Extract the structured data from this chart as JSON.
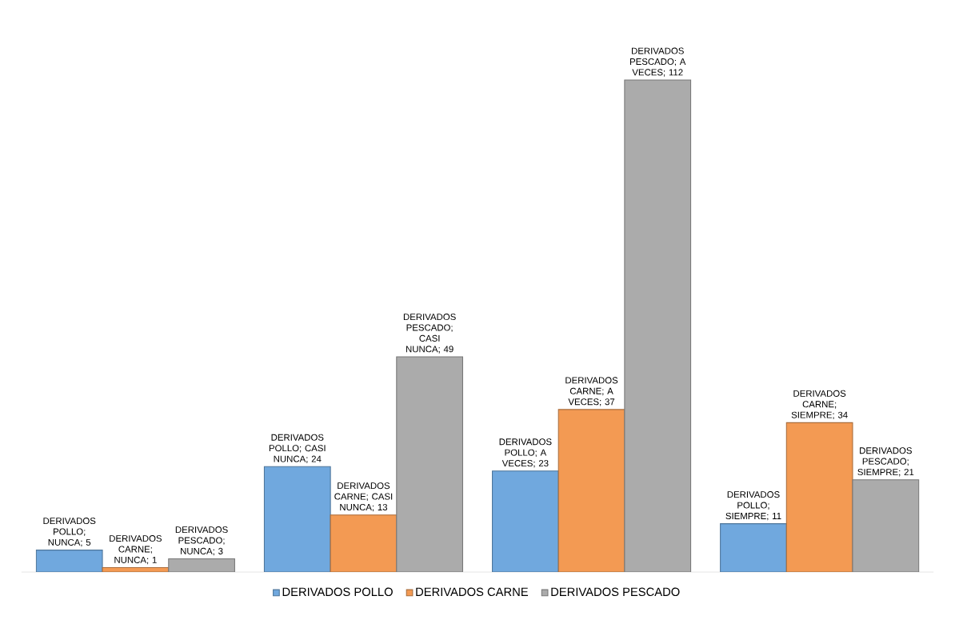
{
  "chart_data": {
    "type": "bar",
    "categories": [
      null,
      null,
      null,
      null
    ],
    "series": [
      {
        "name": "DERIVADOS POLLO",
        "color": "#70a8de",
        "values": [
          5,
          24,
          23,
          11
        ],
        "value_labels": [
          "DERIVADOS POLLO; NUNCA; 5",
          "DERIVADOS POLLO; CASI NUNCA; 24",
          "DERIVADOS POLLO; A VECES; 23",
          "DERIVADOS POLLO; SIEMPRE; 11"
        ]
      },
      {
        "name": "DERIVADOS CARNE",
        "color": "#f39a53",
        "values": [
          1,
          13,
          37,
          34
        ],
        "value_labels": [
          "DERIVADOS CARNE; NUNCA; 1",
          "DERIVADOS CARNE; CASI NUNCA; 13",
          "DERIVADOS CARNE; A VECES; 37",
          "DERIVADOS CARNE; SIEMPRE; 34"
        ]
      },
      {
        "name": "DERIVADOS PESCADO",
        "color": "#ababab",
        "values": [
          3,
          49,
          112,
          21
        ],
        "value_labels": [
          "DERIVADOS PESCADO; NUNCA; 3",
          "DERIVADOS PESCADO; CASI NUNCA; 49",
          "DERIVADOS PESCADO; A VECES; 112",
          "DERIVADOS PESCADO; SIEMPRE; 21"
        ]
      }
    ],
    "legend": "bottom"
  }
}
